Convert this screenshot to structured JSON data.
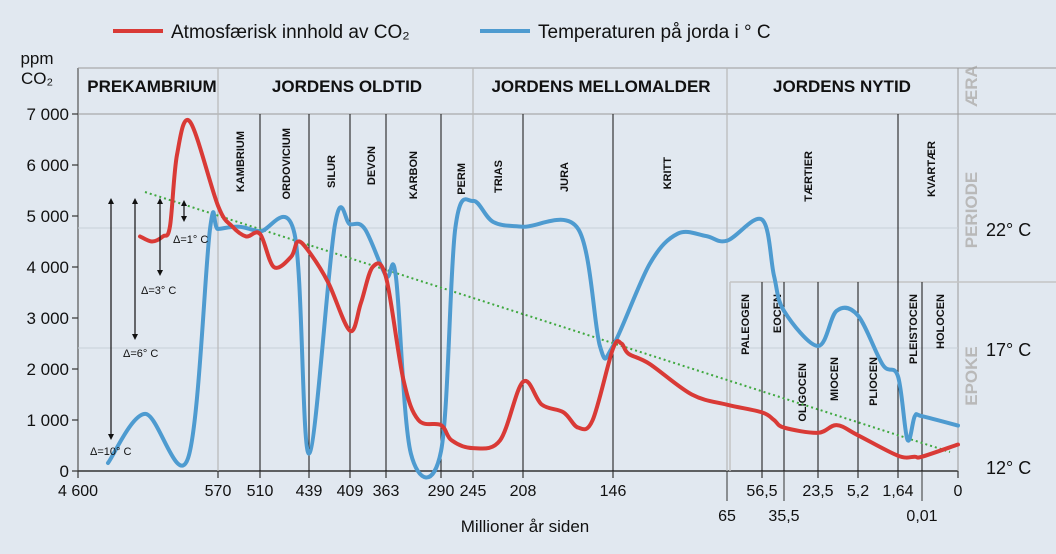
{
  "legend": {
    "co2": {
      "label": "Atmosfærisk innhold av CO₂",
      "color": "#d93a36"
    },
    "temp": {
      "label": "Temperaturen på jorda i ° C",
      "color": "#4e9bd0"
    }
  },
  "colors": {
    "background": "#e1e8f0",
    "trend": "#3fa83f",
    "grid_line": "#9a9a9a"
  },
  "chart_data": {
    "type": "line",
    "xlabel": "Millioner år siden",
    "ylabel": "ppm CO₂",
    "ylabel_lines": [
      "ppm",
      "CO₂"
    ],
    "ylim": [
      0,
      7000
    ],
    "y_ticks": [
      0,
      1000,
      2000,
      3000,
      4000,
      5000,
      6000,
      7000
    ],
    "y_tick_labels": [
      "0",
      "1 000",
      "2 000",
      "3 000",
      "4 000",
      "5 000",
      "6 000",
      "7 000"
    ],
    "x_axis": "non-linear geological time scale (millions of years ago), left = oldest",
    "x_ticks_main": [
      "4 600",
      "570",
      "510",
      "439",
      "409",
      "363",
      "290",
      "245",
      "208",
      "146",
      "56,5",
      "23,5",
      "5,2",
      "1,64",
      "0"
    ],
    "x_ticks_secondary": [
      "65",
      "35,5",
      "0,01"
    ],
    "temperature_axis_labels": [
      "22° C",
      "17° C",
      "12° C"
    ],
    "row_labels": {
      "era": "ÆRA",
      "period": "PERIODE",
      "epoch": "EPOKE"
    },
    "eras": [
      "PREKAMBRIUM",
      "JORDENS OLDTID",
      "JORDENS MELLOMALDER",
      "JORDENS NYTID"
    ],
    "periods": [
      "KAMBRIUM",
      "ORDOVICIUM",
      "SILUR",
      "DEVON",
      "KARBON",
      "PERM",
      "TRIAS",
      "JURA",
      "KRITT",
      "TÆRTIER",
      "KVARTÆR"
    ],
    "epochs": [
      "PALEOGEN",
      "EOCEN",
      "OLIGOCEN",
      "MIOCEN",
      "PLIOCEN",
      "PLEISTOCEN",
      "HOLOCEN"
    ],
    "temperature_deltas": [
      "Δ=1° C",
      "Δ=3° C",
      "Δ=6° C",
      "Δ=10° C"
    ],
    "series": [
      {
        "name": "Atmosfærisk innhold av CO₂",
        "unit": "ppm",
        "points": [
          [
            "~600",
            4600
          ],
          [
            "~595",
            4500
          ],
          [
            "~585",
            4600
          ],
          [
            "~580",
            4800
          ],
          [
            "~578",
            6200
          ],
          [
            "~572",
            6850
          ],
          [
            "570",
            5200
          ],
          [
            "~550",
            4800
          ],
          [
            "~530",
            4600
          ],
          [
            "510",
            4650
          ],
          [
            "~490",
            4000
          ],
          [
            "~465",
            4200
          ],
          [
            "~455",
            4500
          ],
          [
            "439",
            4300
          ],
          [
            "~425",
            3700
          ],
          [
            "409",
            2750
          ],
          [
            "~395",
            3300
          ],
          [
            "~380",
            4000
          ],
          [
            "363",
            3800
          ],
          [
            "~340",
            1800
          ],
          [
            "~320",
            1000
          ],
          [
            "290",
            900
          ],
          [
            "~275",
            600
          ],
          [
            "245",
            450
          ],
          [
            "~225",
            600
          ],
          [
            "208",
            1750
          ],
          [
            "~195",
            1300
          ],
          [
            "~180",
            1150
          ],
          [
            "~170",
            850
          ],
          [
            "~160",
            1000
          ],
          [
            "146",
            2400
          ],
          [
            "~140",
            2500
          ],
          [
            "~135",
            2300
          ],
          [
            "~120",
            2100
          ],
          [
            "~90",
            1500
          ],
          [
            "65",
            1300
          ],
          [
            "56,5",
            1150
          ],
          [
            "~45",
            1000
          ],
          [
            "35,5",
            850
          ],
          [
            "23,5",
            750
          ],
          [
            "~15",
            900
          ],
          [
            "5,2",
            700
          ],
          [
            "1,64",
            300
          ],
          [
            "~0,5",
            280
          ],
          [
            "0,01",
            280
          ],
          [
            "0",
            520
          ]
        ]
      },
      {
        "name": "Temperaturen på jorda i ° C",
        "unit": "°C",
        "points": [
          [
            "4 600",
            12
          ],
          [
            "~4000",
            14.1
          ],
          [
            "~3000",
            12.2
          ],
          [
            "~1000",
            22.0
          ],
          [
            "570",
            22.0
          ],
          [
            "~540",
            22.1
          ],
          [
            "510",
            21.9
          ],
          [
            "~460",
            21.8
          ],
          [
            "439",
            12.4
          ],
          [
            "~420",
            22.2
          ],
          [
            "409",
            22.2
          ],
          [
            "~390",
            22.0
          ],
          [
            "363",
            20.0
          ],
          [
            "~350",
            20.0
          ],
          [
            "~330",
            12.4
          ],
          [
            "290",
            12.5
          ],
          [
            "~270",
            22.0
          ],
          [
            "245",
            23.2
          ],
          [
            "~230",
            22.3
          ],
          [
            "208",
            22.1
          ],
          [
            "~170",
            22.0
          ],
          [
            "~155",
            17.0
          ],
          [
            "146",
            17.0
          ],
          [
            "~120",
            20.5
          ],
          [
            "~100",
            21.8
          ],
          [
            "~80",
            21.7
          ],
          [
            "65",
            21.5
          ],
          [
            "56,5",
            22.4
          ],
          [
            "~45",
            20.0
          ],
          [
            "35,5",
            18.5
          ],
          [
            "23,5",
            17.0
          ],
          [
            "~15",
            18.5
          ],
          [
            "5,2",
            18.3
          ],
          [
            "~3",
            16.2
          ],
          [
            "1,64",
            15.7
          ],
          [
            "~1",
            13.0
          ],
          [
            "~0,5",
            14.0
          ],
          [
            "0,01",
            14.0
          ],
          [
            "0",
            13.6
          ]
        ]
      }
    ]
  }
}
